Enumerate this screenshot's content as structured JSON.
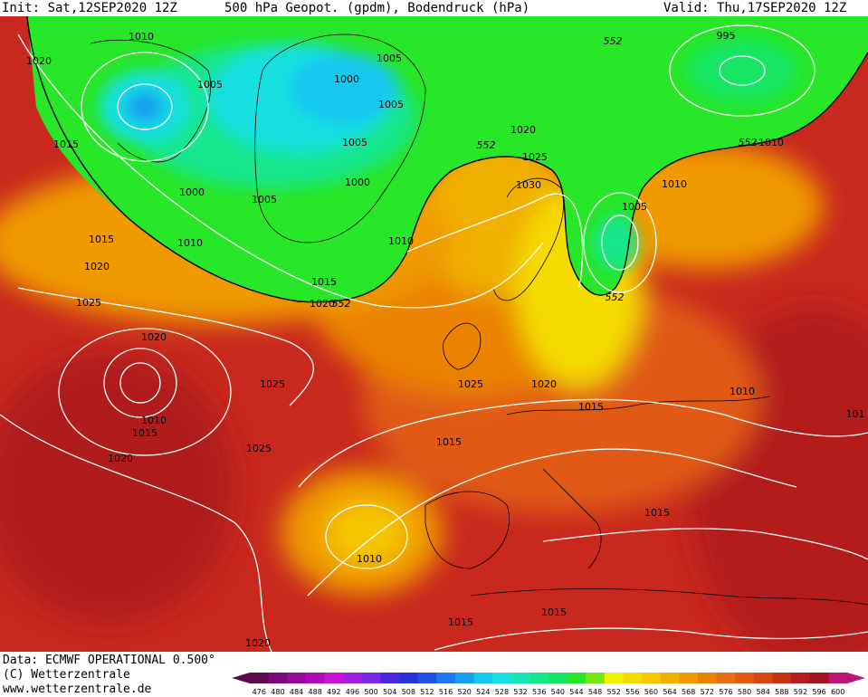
{
  "header": {
    "init": "Init: Sat,12SEP2020 12Z",
    "title": "500 hPa Geopot. (gpdm), Bodendruck (hPa)",
    "valid": "Valid: Thu,17SEP2020 12Z"
  },
  "footer": {
    "data": "Data: ECMWF OPERATIONAL 0.500°",
    "copyright": "(C) Wetterzentrale",
    "url": "www.wetterzentrale.de"
  },
  "colorbar": {
    "ticks": [
      "476",
      "480",
      "484",
      "488",
      "492",
      "496",
      "500",
      "504",
      "508",
      "512",
      "516",
      "520",
      "524",
      "528",
      "532",
      "536",
      "540",
      "544",
      "548",
      "552",
      "556",
      "560",
      "564",
      "568",
      "572",
      "576",
      "580",
      "584",
      "588",
      "592",
      "596",
      "600"
    ],
    "colors": [
      "#5a0a4e",
      "#7a0a78",
      "#9a0a9a",
      "#b00ab8",
      "#c814d2",
      "#a01ee0",
      "#7a28e8",
      "#4a28e0",
      "#2832d8",
      "#1e50e6",
      "#1e78f0",
      "#14a0f0",
      "#14c8f0",
      "#14e0e0",
      "#14e6b4",
      "#14e68c",
      "#14e664",
      "#28e628",
      "#78e614",
      "#f0f000",
      "#f5dc00",
      "#f5c800",
      "#f0b000",
      "#f09a00",
      "#eb8200",
      "#e66e14",
      "#e05a14",
      "#d84614",
      "#c83214",
      "#b41e1e",
      "#a0141e",
      "#be1478"
    ]
  },
  "isobar_labels": [
    {
      "text": "1010"
    },
    {
      "text": "1020"
    },
    {
      "text": "1005"
    },
    {
      "text": "1000"
    },
    {
      "text": "1005"
    },
    {
      "text": "1005"
    },
    {
      "text": "1015"
    },
    {
      "text": "1000"
    },
    {
      "text": "1005"
    },
    {
      "text": "1000"
    },
    {
      "text": "1005"
    },
    {
      "text": "1010"
    },
    {
      "text": "1020"
    },
    {
      "text": "1025"
    },
    {
      "text": "1030"
    },
    {
      "text": "995"
    },
    {
      "text": "1010"
    },
    {
      "text": "1010"
    },
    {
      "text": "1005"
    },
    {
      "text": "1010"
    },
    {
      "text": "1015"
    },
    {
      "text": "1020"
    },
    {
      "text": "1015"
    },
    {
      "text": "1020"
    },
    {
      "text": "1025"
    },
    {
      "text": "1020"
    },
    {
      "text": "1010"
    },
    {
      "text": "1015"
    },
    {
      "text": "1020"
    },
    {
      "text": "1025"
    },
    {
      "text": "1025"
    },
    {
      "text": "1025"
    },
    {
      "text": "1020"
    },
    {
      "text": "1015"
    },
    {
      "text": "1015"
    },
    {
      "text": "1010"
    },
    {
      "text": "1010"
    },
    {
      "text": "1015"
    },
    {
      "text": "1015"
    },
    {
      "text": "1015"
    },
    {
      "text": "1020"
    },
    {
      "text": "101"
    }
  ],
  "geopot_labels": [
    {
      "text": "552"
    },
    {
      "text": "552"
    },
    {
      "text": "552"
    },
    {
      "text": "552"
    },
    {
      "text": "552"
    }
  ]
}
